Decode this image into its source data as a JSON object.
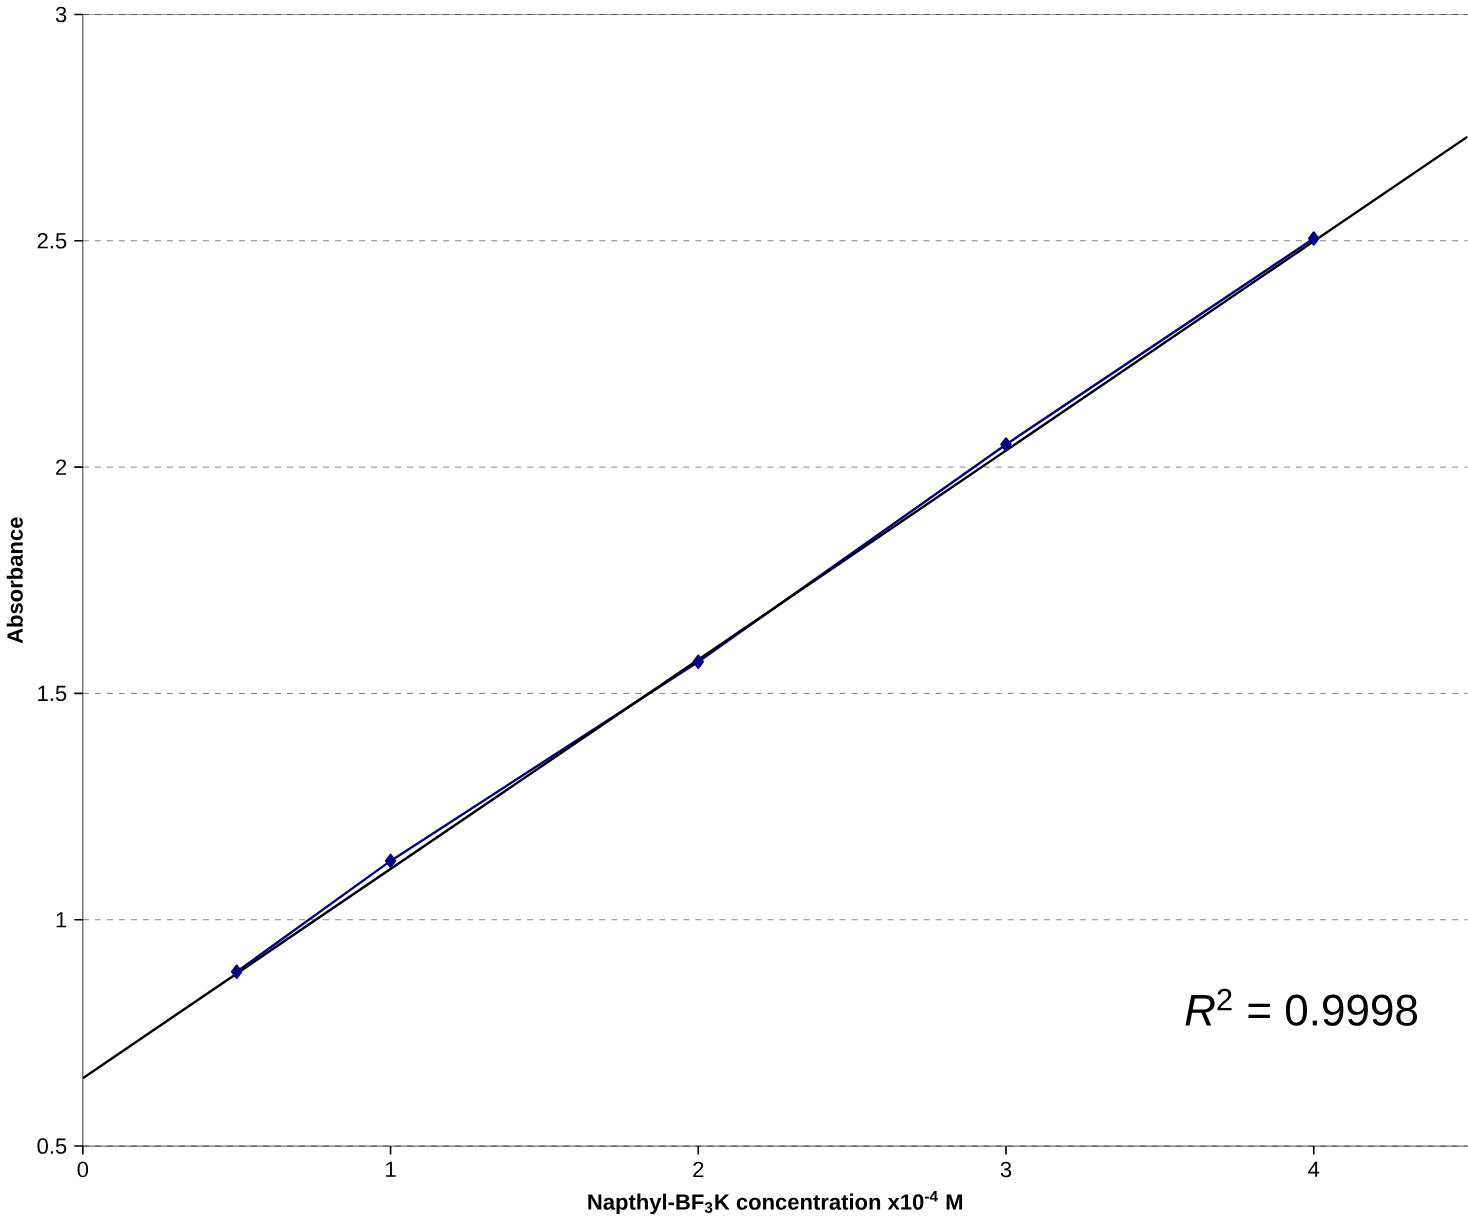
{
  "chart_data": {
    "type": "line",
    "xlabel": "Napthyl-BF$_{3}$K concentration  x10$^{-4}$ M",
    "ylabel": "Absorbance",
    "series": [
      {
        "color": "#000080",
        "marker": "diamond",
        "x": [
          0.5,
          1,
          2,
          3,
          4
        ],
        "values": [
          0.885,
          1.13,
          1.57,
          2.05,
          2.505
        ]
      },
      {
        "color": "#000000",
        "marker": "none",
        "x": [
          0,
          4.5
        ],
        "values": [
          0.65,
          2.73
        ]
      }
    ],
    "xlim": [
      0,
      4.5
    ],
    "ylim": [
      0.5,
      3
    ],
    "xticks": [
      0,
      1,
      2,
      3,
      4
    ],
    "yticks": [
      0.5,
      1,
      1.5,
      2,
      2.5,
      3
    ],
    "grid": "y",
    "annotations": [
      "*R*$^{2}$ = 0.9998"
    ]
  }
}
